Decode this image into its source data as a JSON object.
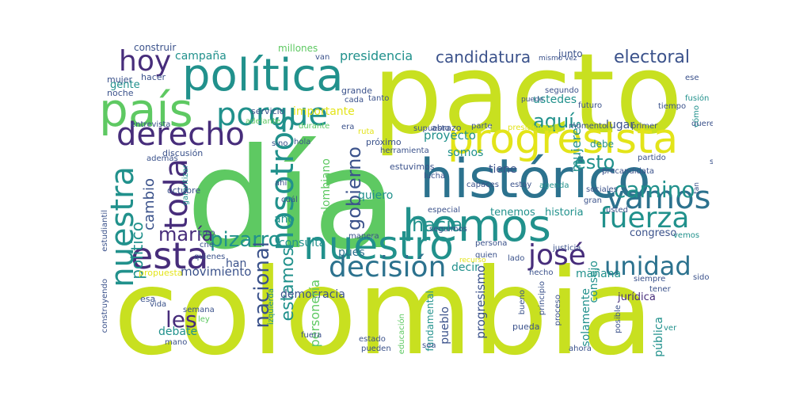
{
  "palette": {
    "yellow": "#e3e419",
    "lime": "#c8e020",
    "green": "#5ec962",
    "lightgreen": "#90d743",
    "teal": "#21918c",
    "tealdark": "#2c728e",
    "blue": "#3b528b",
    "purple": "#472d7b",
    "darkpurple": "#440154"
  },
  "words": [
    {
      "text": "colombia"
    },
    {
      "text": "día"
    },
    {
      "text": "pacto"
    },
    {
      "text": "histórico"
    },
    {
      "text": "progresista"
    },
    {
      "text": "política"
    },
    {
      "text": "país"
    },
    {
      "text": "hemos"
    },
    {
      "text": "nuestro"
    },
    {
      "text": "esta"
    },
    {
      "text": "porque"
    },
    {
      "text": "derecho"
    },
    {
      "text": "hoy"
    },
    {
      "text": "decisión"
    },
    {
      "text": "vamos"
    },
    {
      "text": "fuerza"
    },
    {
      "text": "unidad"
    },
    {
      "text": "josé"
    },
    {
      "text": "nuestra"
    },
    {
      "text": "toda"
    },
    {
      "text": "nosotros"
    },
    {
      "text": "camino"
    },
    {
      "text": "candidatura"
    },
    {
      "text": "electoral"
    },
    {
      "text": "pizarro"
    },
    {
      "text": "les"
    },
    {
      "text": "maría"
    },
    {
      "text": "nacional"
    },
    {
      "text": "gobierno"
    },
    {
      "text": "hacia"
    },
    {
      "text": "esto"
    },
    {
      "text": "aquí"
    },
    {
      "text": "estamos"
    },
    {
      "text": "cambio"
    },
    {
      "text": "político"
    },
    {
      "text": "presidencia"
    },
    {
      "text": "campaña"
    },
    {
      "text": "construir"
    },
    {
      "text": "millones"
    },
    {
      "text": "movimiento"
    },
    {
      "text": "importante"
    },
    {
      "text": "proyecto"
    },
    {
      "text": "tiene"
    },
    {
      "text": "quiero"
    },
    {
      "text": "somos"
    },
    {
      "text": "historia"
    },
    {
      "text": "tenemos"
    },
    {
      "text": "consulta"
    },
    {
      "text": "pues"
    },
    {
      "text": "congreso"
    },
    {
      "text": "lugar"
    },
    {
      "text": "debe"
    },
    {
      "text": "ustedes"
    },
    {
      "text": "mujeres"
    },
    {
      "text": "democracia"
    },
    {
      "text": "personería"
    },
    {
      "text": "colombiano"
    },
    {
      "text": "año"
    },
    {
      "text": "han"
    },
    {
      "text": "debate"
    },
    {
      "text": "jurídica"
    },
    {
      "text": "consejo"
    },
    {
      "text": "mañana"
    },
    {
      "text": "decir"
    },
    {
      "text": "república"
    },
    {
      "text": "pueblo"
    },
    {
      "text": "solamente"
    },
    {
      "text": "progresismo"
    },
    {
      "text": "junto"
    },
    {
      "text": "gente"
    },
    {
      "text": "hacer"
    },
    {
      "text": "mujer"
    },
    {
      "text": "noche"
    },
    {
      "text": "van"
    },
    {
      "text": "grande"
    },
    {
      "text": "cada"
    },
    {
      "text": "tanto"
    },
    {
      "text": "servicio"
    },
    {
      "text": "adelante"
    },
    {
      "text": "durante"
    },
    {
      "text": "entrevista"
    },
    {
      "text": "hola"
    },
    {
      "text": "sino"
    },
    {
      "text": "era"
    },
    {
      "text": "próximo"
    },
    {
      "text": "supuesto"
    },
    {
      "text": "abrazo"
    },
    {
      "text": "parte"
    },
    {
      "text": "herramienta"
    },
    {
      "text": "estuvimos"
    },
    {
      "text": "lucha"
    },
    {
      "text": "capaces"
    },
    {
      "text": "estoy"
    },
    {
      "text": "agenda"
    },
    {
      "text": "precandidata"
    },
    {
      "text": "sociales"
    },
    {
      "text": "gran"
    },
    {
      "text": "primer"
    },
    {
      "text": "queremos"
    },
    {
      "text": "momento"
    },
    {
      "text": "presidencial"
    },
    {
      "text": "partido"
    },
    {
      "text": "fusión"
    },
    {
      "text": "futuro"
    },
    {
      "text": "segundo"
    },
    {
      "text": "puede"
    },
    {
      "text": "vez"
    },
    {
      "text": "mismo"
    },
    {
      "text": "solo"
    },
    {
      "text": "tiempo"
    },
    {
      "text": "cómo"
    },
    {
      "text": "ese"
    },
    {
      "text": "discusión"
    },
    {
      "text": "además"
    },
    {
      "text": "octubre"
    },
    {
      "text": "ahí"
    },
    {
      "text": "cuál"
    },
    {
      "text": "garantizar"
    },
    {
      "text": "especial"
    },
    {
      "text": "seguimos"
    },
    {
      "text": "manera"
    },
    {
      "text": "persona"
    },
    {
      "text": "quien"
    },
    {
      "text": "lado"
    },
    {
      "text": "justicia"
    },
    {
      "text": "vemos"
    },
    {
      "text": "usted"
    },
    {
      "text": "siempre"
    },
    {
      "text": "sido"
    },
    {
      "text": "tener"
    },
    {
      "text": "hecho"
    },
    {
      "text": "estudiantil"
    },
    {
      "text": "creo"
    },
    {
      "text": "cne"
    },
    {
      "text": "quienes"
    },
    {
      "text": "propuesta"
    },
    {
      "text": "izquierda"
    },
    {
      "text": "esa"
    },
    {
      "text": "vida"
    },
    {
      "text": "semana"
    },
    {
      "text": "ley"
    },
    {
      "text": "construyendo"
    },
    {
      "text": "fundamental"
    },
    {
      "text": "educación"
    },
    {
      "text": "estado"
    },
    {
      "text": "pueden"
    },
    {
      "text": "fuera"
    },
    {
      "text": "bueno"
    },
    {
      "text": "pueda"
    },
    {
      "text": "proceso"
    },
    {
      "text": "principio"
    },
    {
      "text": "ahora"
    },
    {
      "text": "posible"
    },
    {
      "text": "ver"
    },
    {
      "text": "mano"
    },
    {
      "text": "sea"
    },
    {
      "text": "recurso"
    },
    {
      "text": "tan"
    },
    {
      "text": "ruta"
    }
  ]
}
